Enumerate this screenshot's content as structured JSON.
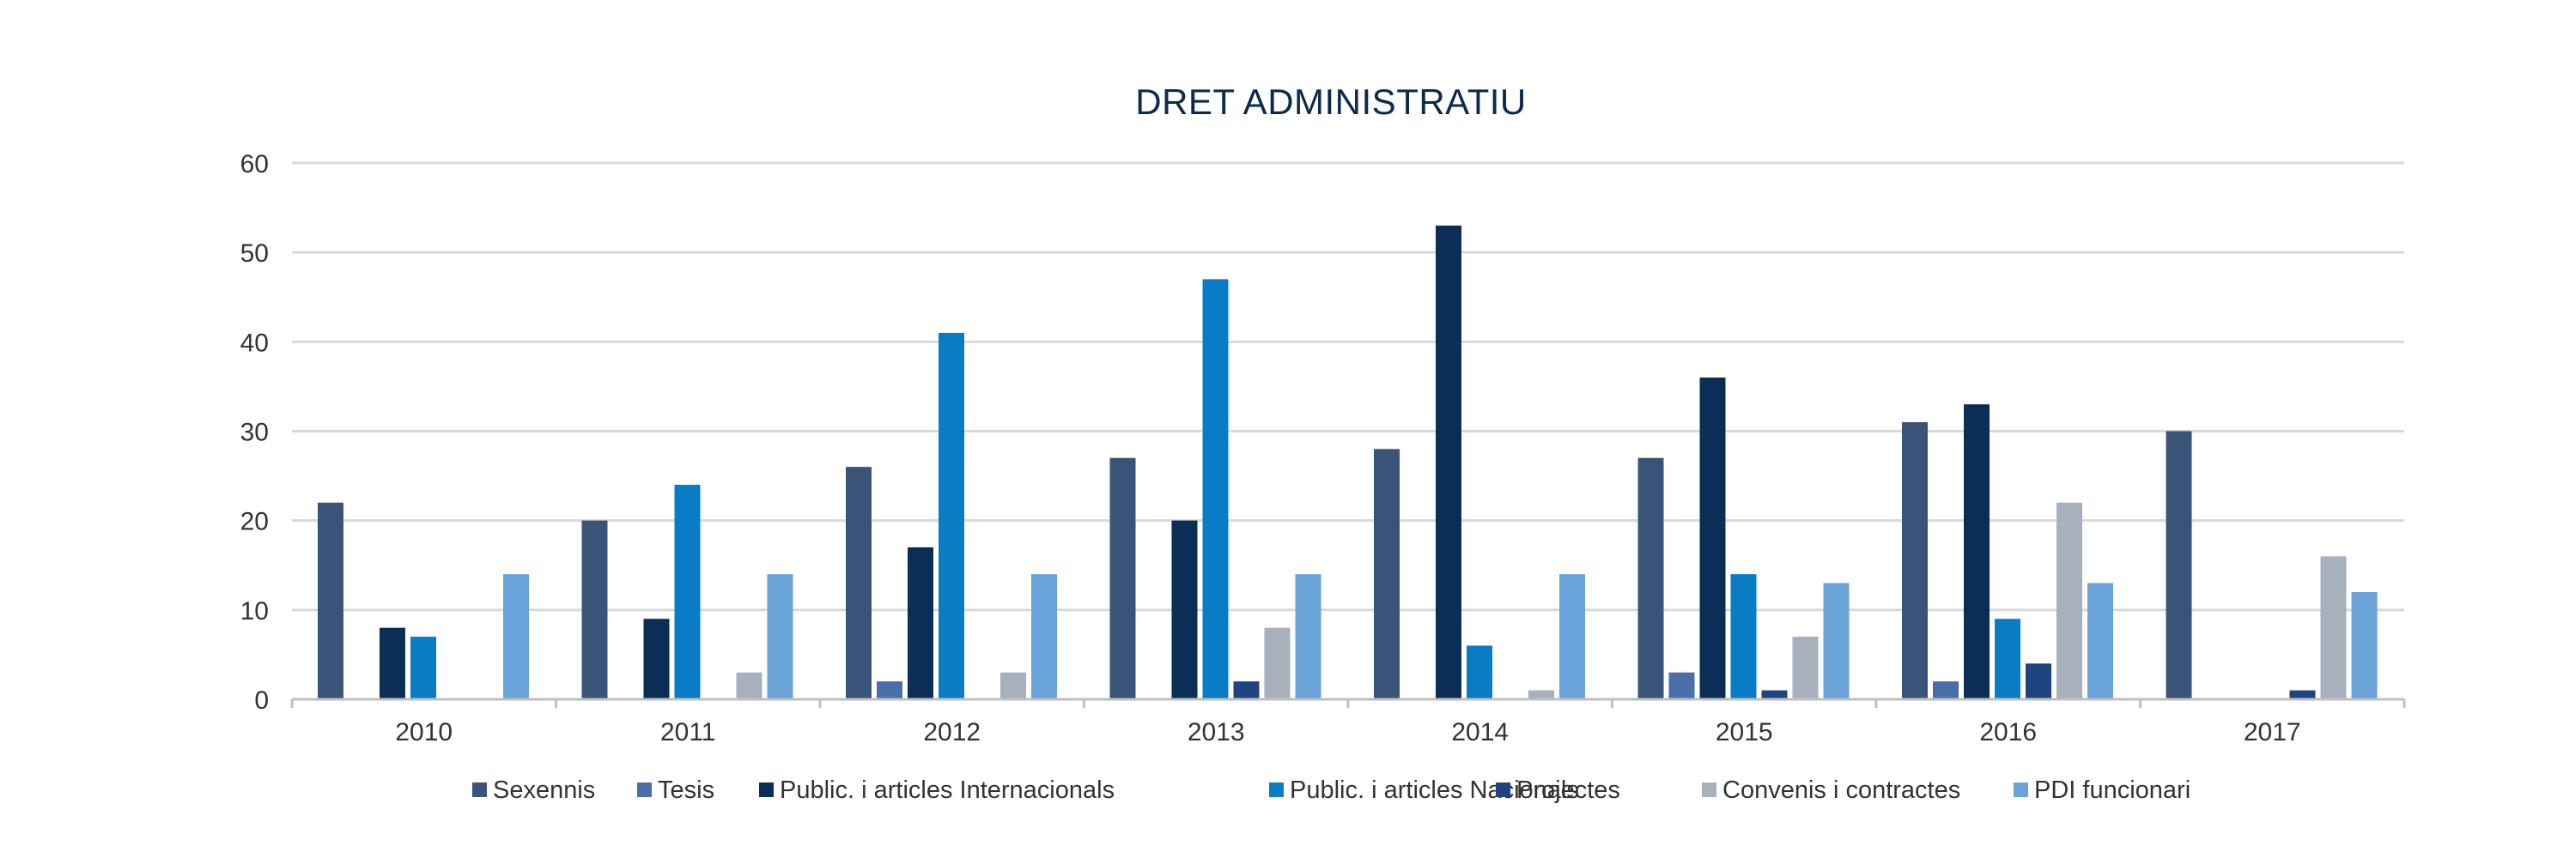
{
  "chart_data": {
    "type": "bar",
    "title": "DRET ADMINISTRATIU",
    "xlabel": "",
    "ylabel": "",
    "ylim": [
      0,
      60
    ],
    "yticks": [
      0,
      10,
      20,
      30,
      40,
      50,
      60
    ],
    "grid": true,
    "legend_position": "bottom",
    "categories": [
      "2010",
      "2011",
      "2012",
      "2013",
      "2014",
      "2015",
      "2016",
      "2017"
    ],
    "series": [
      {
        "name": "Sexennis",
        "color": "#3a5478",
        "values": [
          22,
          20,
          26,
          27,
          28,
          27,
          31,
          30
        ]
      },
      {
        "name": "Tesis",
        "color": "#4a6fa8",
        "values": [
          0,
          0,
          2,
          0,
          0,
          3,
          2,
          0
        ]
      },
      {
        "name": "Public. i articles Internacionals",
        "color": "#0a2e55",
        "values": [
          8,
          9,
          17,
          20,
          53,
          36,
          33,
          0
        ]
      },
      {
        "name": "Public. i articles Nacionals",
        "color": "#0a7cc4",
        "values": [
          7,
          24,
          41,
          47,
          6,
          14,
          9,
          0
        ]
      },
      {
        "name": "Projectes",
        "color": "#1f4580",
        "values": [
          0,
          0,
          0,
          2,
          0,
          1,
          4,
          1
        ]
      },
      {
        "name": "Convenis i contractes",
        "color": "#a6b1bc",
        "values": [
          0,
          3,
          3,
          8,
          1,
          7,
          22,
          16
        ]
      },
      {
        "name": "PDI funcionari",
        "color": "#6aa3d8",
        "values": [
          14,
          14,
          14,
          14,
          14,
          13,
          13,
          12
        ]
      }
    ]
  }
}
